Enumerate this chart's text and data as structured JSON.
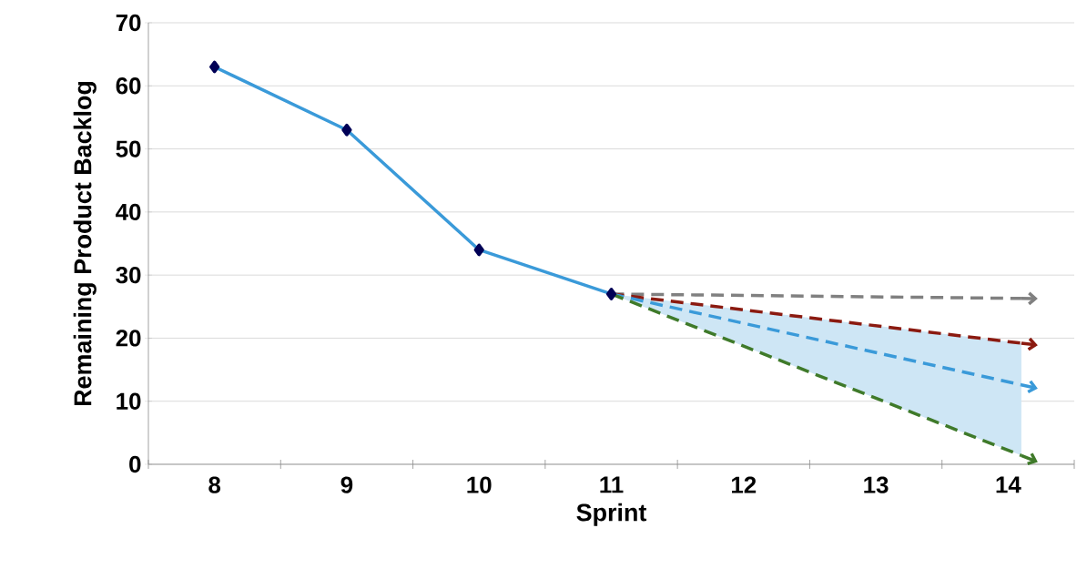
{
  "chart_data": {
    "type": "line",
    "xlabel": "Sprint",
    "ylabel": "Remaining Product Backlog",
    "xlim": [
      7.5,
      14.5
    ],
    "xticks": [
      {
        "value": 7.5,
        "label": null
      },
      8,
      {
        "value": 8.5,
        "label": null
      },
      9,
      {
        "value": 9.5,
        "label": null
      },
      10,
      {
        "value": 10.5,
        "label": null
      },
      11,
      {
        "value": 11.5,
        "label": null
      },
      12,
      {
        "value": 12.5,
        "label": null
      },
      13,
      {
        "value": 13.5,
        "label": null
      },
      14,
      {
        "value": 14.5,
        "label": null
      }
    ],
    "ylim": [
      0,
      70
    ],
    "yticks": [
      0,
      10,
      20,
      30,
      40,
      50,
      60,
      70
    ],
    "grid": "y",
    "series": [
      {
        "x": [
          8,
          9,
          10,
          11
        ],
        "values": [
          63,
          53,
          34,
          27
        ],
        "color": "#3a9ad9",
        "marker": "diamond",
        "line_style": "solid"
      },
      {
        "x": [
          11,
          14.1
        ],
        "values": [
          27,
          26.3
        ],
        "color": "#808080",
        "marker": "none",
        "line_style": "dashed"
      },
      {
        "x": [
          11,
          14.1
        ],
        "values": [
          27,
          19.2
        ],
        "color": "#8b1a10",
        "marker": "none",
        "line_style": "dashed"
      },
      {
        "x": [
          11,
          14.1
        ],
        "values": [
          27,
          12.6
        ],
        "lower": [
          27,
          1.4
        ],
        "upper": [
          27,
          19.2
        ],
        "color": "#3a9ad9",
        "marker": "none",
        "line_style": "dashed"
      },
      {
        "x": [
          11,
          14.1
        ],
        "values": [
          27,
          1.4
        ],
        "color": "#3f7a2a",
        "marker": "none",
        "line_style": "dashed"
      }
    ]
  }
}
